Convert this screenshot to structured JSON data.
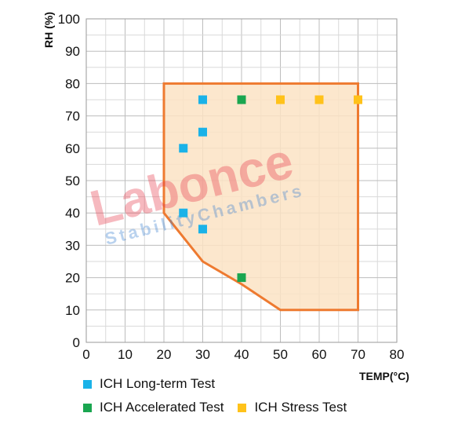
{
  "chart_data": {
    "type": "scatter",
    "xlabel": "TEMP(°C)",
    "ylabel": "RH (%)",
    "xlim": [
      0,
      80
    ],
    "ylim": [
      0,
      100
    ],
    "x_ticks": [
      0,
      10,
      20,
      30,
      40,
      50,
      60,
      70,
      80
    ],
    "y_ticks": [
      0,
      10,
      20,
      30,
      40,
      50,
      60,
      70,
      80,
      90,
      100
    ],
    "grid": true,
    "region": {
      "fill": "#fbe3c4",
      "stroke": "#ee7a30",
      "points": [
        [
          20,
          80
        ],
        [
          70,
          80
        ],
        [
          70,
          10
        ],
        [
          50,
          10
        ],
        [
          40,
          18
        ],
        [
          30,
          25
        ],
        [
          20,
          40
        ]
      ]
    },
    "series": [
      {
        "name": "ICH Long-term Test",
        "color": "#1ab2e8",
        "points": [
          [
            30,
            75
          ],
          [
            30,
            65
          ],
          [
            25,
            60
          ],
          [
            25,
            40
          ],
          [
            30,
            35
          ]
        ]
      },
      {
        "name": "ICH Accelerated Test",
        "color": "#1aa650",
        "points": [
          [
            40,
            75
          ],
          [
            40,
            20
          ]
        ]
      },
      {
        "name": "ICH Stress Test",
        "color": "#ffc21a",
        "points": [
          [
            50,
            75
          ],
          [
            60,
            75
          ],
          [
            70,
            75
          ]
        ]
      }
    ],
    "watermark": {
      "main": "Labonce",
      "sub": "StabilityChambers"
    }
  }
}
